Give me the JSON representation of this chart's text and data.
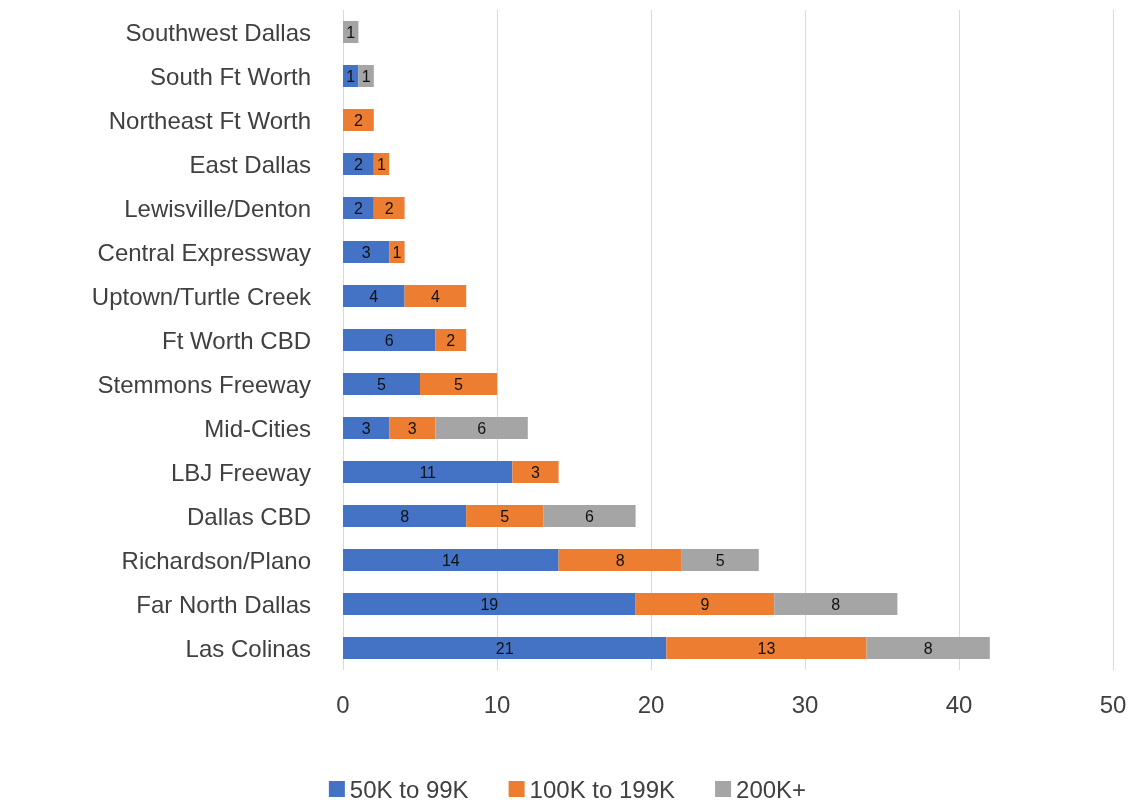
{
  "chart_data": {
    "type": "bar",
    "orientation": "horizontal",
    "stacked": true,
    "data_labels": true,
    "grid": "x",
    "legend": "bottom",
    "categories": [
      "Southwest Dallas",
      "South Ft Worth",
      "Northeast Ft Worth",
      "East Dallas",
      "Lewisville/Denton",
      "Central Expressway",
      "Uptown/Turtle Creek",
      "Ft Worth CBD",
      "Stemmons Freeway",
      "Mid-Cities",
      "LBJ Freeway",
      "Dallas CBD",
      "Richardson/Plano",
      "Far North Dallas",
      "Las Colinas"
    ],
    "xlim": [
      0,
      50
    ],
    "xticks": [
      0,
      10,
      20,
      30,
      40,
      50
    ],
    "series": [
      {
        "name": "50K to 99K",
        "color": "#4472c4",
        "values": [
          null,
          1,
          null,
          2,
          2,
          3,
          4,
          6,
          5,
          3,
          11,
          8,
          14,
          19,
          21
        ]
      },
      {
        "name": "100K to 199K",
        "color": "#ed7d31",
        "values": [
          null,
          null,
          2,
          1,
          2,
          1,
          4,
          2,
          5,
          3,
          3,
          5,
          8,
          9,
          13
        ]
      },
      {
        "name": "200K+",
        "color": "#a5a5a5",
        "values": [
          1,
          1,
          null,
          null,
          null,
          null,
          null,
          null,
          null,
          6,
          null,
          6,
          5,
          8,
          8
        ]
      }
    ]
  }
}
